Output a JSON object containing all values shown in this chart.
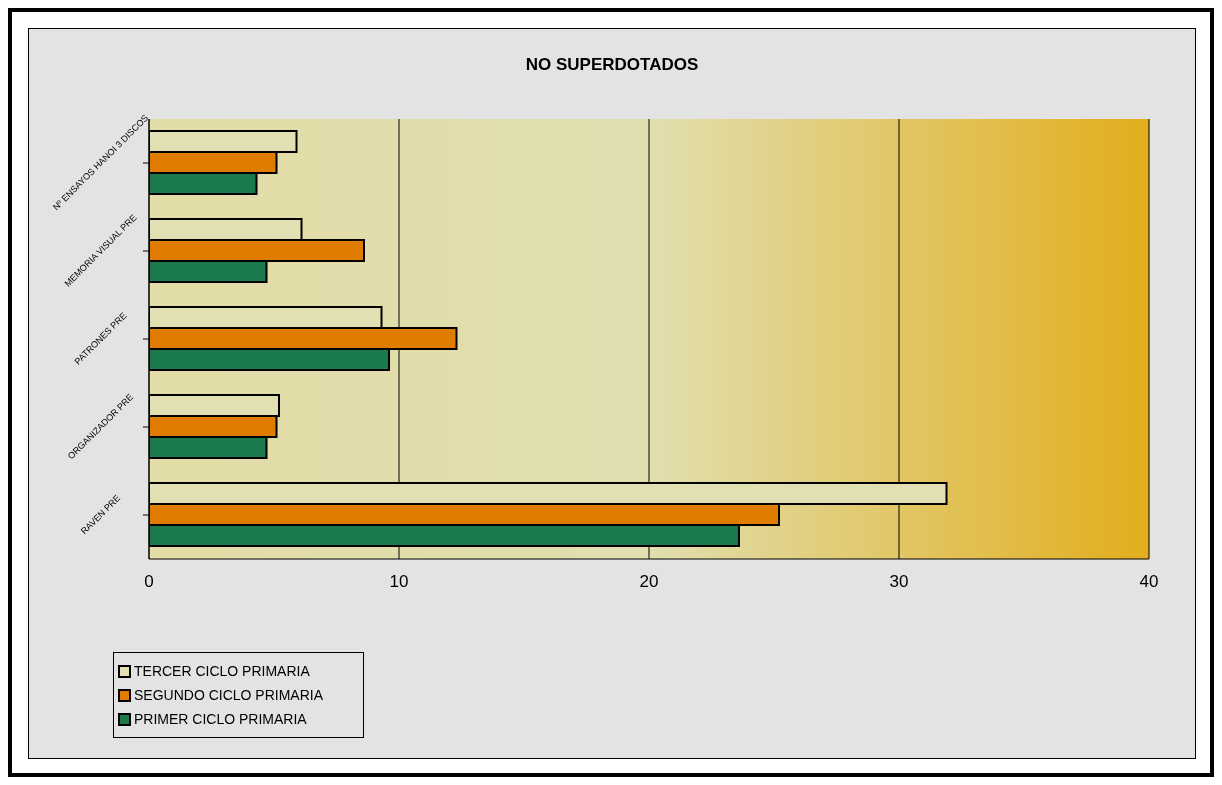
{
  "chart_data": {
    "type": "bar",
    "orientation": "horizontal",
    "title": "NO SUPERDOTADOS",
    "categories": [
      "Nº ENSAYOS HANOI 3 DISCOS",
      "MEMORIA VISUAL PRE",
      "PATRONES PRE",
      "ORGANIZADOR PRE",
      "RAVEN PRE"
    ],
    "series": [
      {
        "name": "TERCER CICLO PRIMARIA",
        "color": "#e2e0b2",
        "values": [
          5.9,
          6.1,
          9.3,
          5.2,
          31.9
        ]
      },
      {
        "name": "SEGUNDO CICLO PRIMARIA",
        "color": "#e07c00",
        "values": [
          5.1,
          8.6,
          12.3,
          5.1,
          25.2
        ]
      },
      {
        "name": "PRIMER CICLO PRIMARIA",
        "color": "#1b7a4c",
        "values": [
          4.3,
          4.7,
          9.6,
          4.7,
          23.6
        ]
      }
    ],
    "xlim": [
      0,
      40
    ],
    "xticks": [
      0,
      10,
      20,
      30,
      40
    ],
    "grid": "x",
    "legend": "bottom left"
  }
}
